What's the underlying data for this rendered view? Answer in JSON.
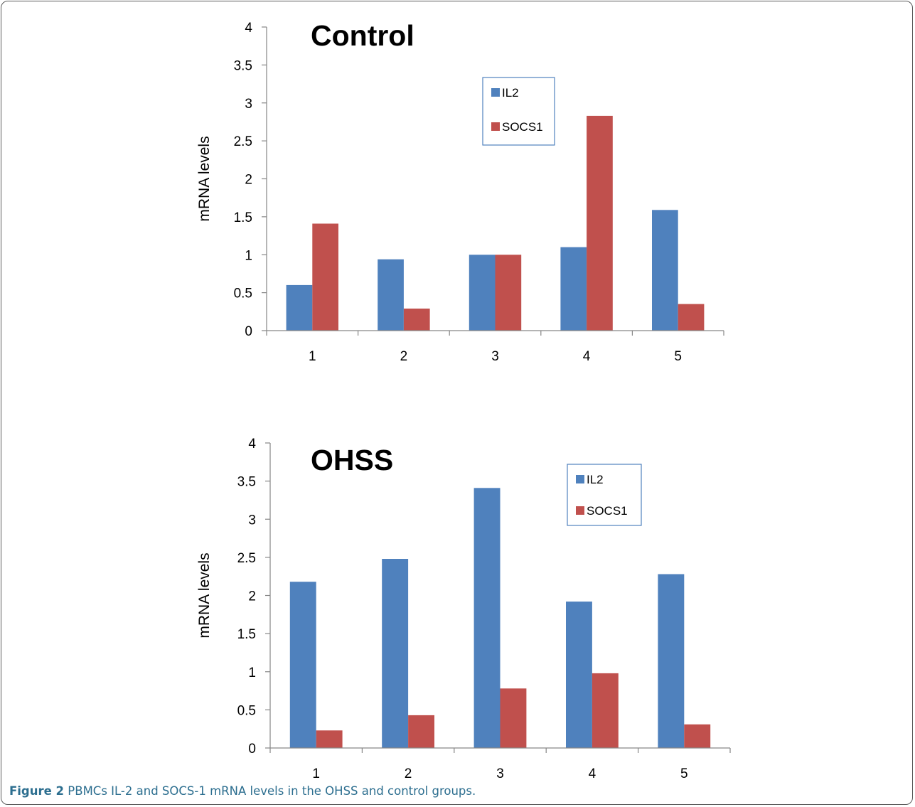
{
  "caption": {
    "label": "Figure 2",
    "text": "PBMCs IL-2 and SOCS-1 mRNA levels in the OHSS and control groups."
  },
  "colors": {
    "IL2": "#4f81bd",
    "SOCS1": "#c0504d",
    "legend_border": "#4f81bd"
  },
  "chart_data": [
    {
      "type": "bar",
      "title": "Control",
      "xlabel": "",
      "ylabel": "mRNA levels",
      "categories": [
        "1",
        "2",
        "3",
        "4",
        "5"
      ],
      "yticks": [
        "0",
        "0.5",
        "1",
        "1.5",
        "2",
        "2.5",
        "3",
        "3.5",
        "4"
      ],
      "ylim": [
        0,
        4
      ],
      "grid": false,
      "legend": "top-right",
      "series": [
        {
          "name": "IL2",
          "values": [
            0.6,
            0.94,
            1.0,
            1.1,
            1.59
          ]
        },
        {
          "name": "SOCS1",
          "values": [
            1.41,
            0.29,
            1.0,
            2.83,
            0.35
          ]
        }
      ]
    },
    {
      "type": "bar",
      "title": "OHSS",
      "xlabel": "",
      "ylabel": "mRNA levels",
      "categories": [
        "1",
        "2",
        "3",
        "4",
        "5"
      ],
      "yticks": [
        "0",
        "0.5",
        "1",
        "1.5",
        "2",
        "2.5",
        "3",
        "3.5",
        "4"
      ],
      "ylim": [
        0,
        4
      ],
      "grid": false,
      "legend": "top-right",
      "series": [
        {
          "name": "IL2",
          "values": [
            2.18,
            2.48,
            3.41,
            1.92,
            2.28
          ]
        },
        {
          "name": "SOCS1",
          "values": [
            0.23,
            0.43,
            0.78,
            0.98,
            0.31
          ]
        }
      ]
    }
  ]
}
